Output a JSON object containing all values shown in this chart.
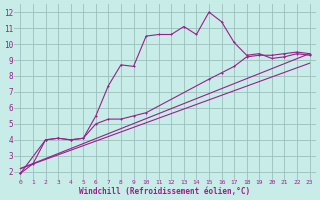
{
  "background_color": "#c8ece8",
  "grid_color": "#9bbfbb",
  "line_color": "#9b1f8a",
  "marker_color": "#9b1f8a",
  "xlabel": "Windchill (Refroidissement éolien,°C)",
  "xlabel_color": "#9b1f8a",
  "tick_color": "#9b1f8a",
  "xlim": [
    -0.5,
    23.5
  ],
  "ylim": [
    1.5,
    12.5
  ],
  "xticks": [
    0,
    1,
    2,
    3,
    4,
    5,
    6,
    7,
    8,
    9,
    10,
    11,
    12,
    13,
    14,
    15,
    16,
    17,
    18,
    19,
    20,
    21,
    22,
    23
  ],
  "yticks": [
    2,
    3,
    4,
    5,
    6,
    7,
    8,
    9,
    10,
    11,
    12
  ],
  "series1_x": [
    0,
    1,
    2,
    3,
    4,
    5,
    6,
    7,
    8,
    9,
    10,
    11,
    12,
    13,
    14,
    15,
    16,
    17,
    18,
    19,
    20,
    21,
    22,
    23
  ],
  "series1_y": [
    1.9,
    2.5,
    4.0,
    4.1,
    4.0,
    4.1,
    5.5,
    7.4,
    8.7,
    8.6,
    10.5,
    10.6,
    10.6,
    11.1,
    10.6,
    12.0,
    11.4,
    10.1,
    9.3,
    9.4,
    9.1,
    9.2,
    9.4,
    9.3
  ],
  "series2_x": [
    0,
    2,
    3,
    4,
    5,
    6,
    7,
    8,
    9,
    10,
    15,
    16,
    17,
    18,
    19,
    20,
    21,
    22,
    23
  ],
  "series2_y": [
    1.9,
    4.0,
    4.1,
    4.0,
    4.1,
    5.0,
    5.3,
    5.3,
    5.5,
    5.7,
    7.8,
    8.2,
    8.6,
    9.2,
    9.3,
    9.3,
    9.4,
    9.5,
    9.4
  ],
  "series3_x": [
    0,
    23
  ],
  "series3_y": [
    2.2,
    9.4
  ],
  "series4_x": [
    0,
    23
  ],
  "series4_y": [
    2.2,
    8.8
  ],
  "figsize": [
    3.2,
    2.0
  ],
  "dpi": 100
}
